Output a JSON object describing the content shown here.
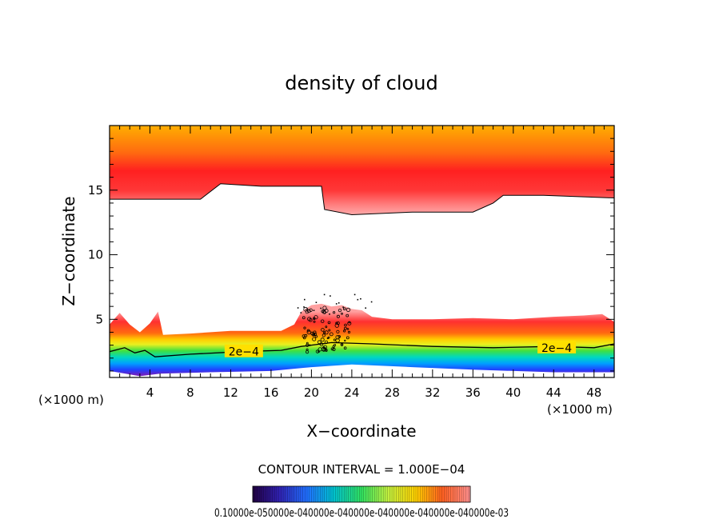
{
  "chart_data": {
    "type": "heatmap",
    "title": "density of cloud",
    "xlabel": "X−coordinate",
    "ylabel": "Z−coordinate",
    "x_unit_left": "(×1000 m)",
    "x_unit_right": "(×1000 m)",
    "xlim": [
      0,
      50
    ],
    "ylim": [
      0.5,
      20
    ],
    "x_ticks": [
      4,
      8,
      12,
      16,
      20,
      24,
      28,
      32,
      36,
      40,
      44,
      48
    ],
    "y_ticks": [
      5,
      10,
      15
    ],
    "contour_labels": [
      {
        "text": "2e−4",
        "x": 13.3,
        "z": 2.5
      },
      {
        "text": "2e−4",
        "x": 44.3,
        "z": 2.8
      }
    ],
    "contour_interval_label": "CONTOUR INTERVAL = 1.000E−04",
    "colorbar_label": "0.10000e-050000e-040000e-040000e-040000e-040000e-040000e-03",
    "layers": {
      "upper_cloud_base": [
        [
          0,
          14.3
        ],
        [
          9,
          14.3
        ],
        [
          11,
          15.5
        ],
        [
          15,
          15.3
        ],
        [
          21,
          15.3
        ],
        [
          21.3,
          13.5
        ],
        [
          24,
          13.1
        ],
        [
          30,
          13.3
        ],
        [
          36,
          13.3
        ],
        [
          38,
          14.0
        ],
        [
          39,
          14.6
        ],
        [
          43,
          14.6
        ],
        [
          50,
          14.4
        ]
      ],
      "lower_cloud_top": [
        [
          0,
          4.6
        ],
        [
          1.0,
          5.5
        ],
        [
          2.0,
          4.6
        ],
        [
          3.0,
          4.0
        ],
        [
          4.0,
          4.7
        ],
        [
          4.8,
          5.6
        ],
        [
          5.3,
          3.8
        ],
        [
          8,
          3.9
        ],
        [
          12,
          4.1
        ],
        [
          17,
          4.1
        ],
        [
          18.3,
          4.6
        ],
        [
          19.0,
          5.6
        ],
        [
          20.0,
          6.1
        ],
        [
          21,
          6.2
        ],
        [
          22,
          6.0
        ],
        [
          23,
          6.1
        ],
        [
          24,
          5.8
        ],
        [
          25,
          5.7
        ],
        [
          26,
          5.2
        ],
        [
          28,
          5.0
        ],
        [
          32,
          5.0
        ],
        [
          36,
          5.1
        ],
        [
          40,
          5.0
        ],
        [
          44,
          5.2
        ],
        [
          47,
          5.3
        ],
        [
          48.8,
          5.4
        ],
        [
          50,
          4.8
        ]
      ],
      "contour_2e4": [
        [
          0,
          2.5
        ],
        [
          1.5,
          2.8
        ],
        [
          2.5,
          2.4
        ],
        [
          3.5,
          2.6
        ],
        [
          4.5,
          2.1
        ],
        [
          8,
          2.3
        ],
        [
          13,
          2.5
        ],
        [
          17,
          2.6
        ],
        [
          19,
          2.9
        ],
        [
          22,
          3.2
        ],
        [
          26,
          3.1
        ],
        [
          32,
          2.9
        ],
        [
          38,
          2.8
        ],
        [
          44,
          2.9
        ],
        [
          48,
          2.8
        ],
        [
          50,
          3.1
        ]
      ],
      "cloud_bottom": [
        [
          0,
          1.0
        ],
        [
          3,
          0.6
        ],
        [
          5,
          0.8
        ],
        [
          10,
          0.9
        ],
        [
          16,
          1.0
        ],
        [
          20,
          1.3
        ],
        [
          24,
          1.5
        ],
        [
          30,
          1.3
        ],
        [
          36,
          1.1
        ],
        [
          44,
          0.9
        ],
        [
          50,
          0.9
        ]
      ]
    },
    "colors": {
      "orange": "#ffa500",
      "red": "#ff2020",
      "pink": "#ff9090",
      "yellow": "#ffe000",
      "green": "#30e040",
      "cyan": "#00d0d0",
      "blue": "#1050ff",
      "purple": "#7020c0"
    }
  }
}
